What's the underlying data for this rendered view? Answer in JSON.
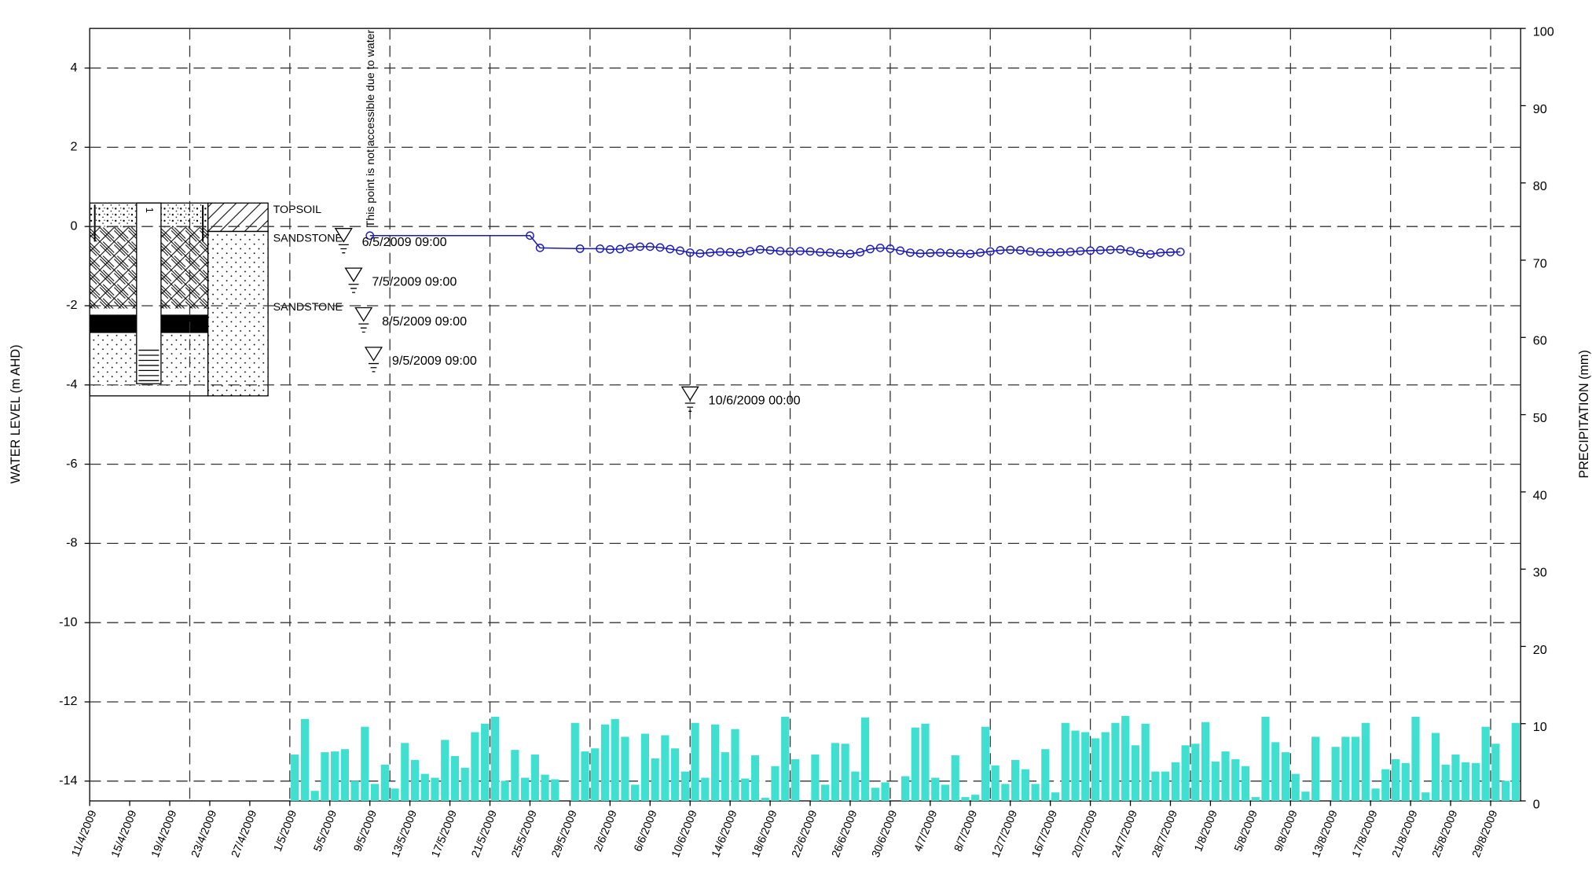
{
  "chart_data": {
    "type": "line",
    "ylabel": "WATER LEVEL (m AHD)",
    "y2label": "PRECIPITATION (mm)",
    "xlim": [
      "11/4/2009",
      "1/9/2009"
    ],
    "xticks": [
      "11/4/2009",
      "15/4/2009",
      "19/4/2009",
      "23/4/2009",
      "27/4/2009",
      "1/5/2009",
      "5/5/2009",
      "9/5/2009",
      "13/5/2009",
      "17/5/2009",
      "21/5/2009",
      "25/5/2009",
      "29/5/2009",
      "2/6/2009",
      "6/6/2009",
      "10/6/2009",
      "14/6/2009",
      "18/6/2009",
      "22/6/2009",
      "26/6/2009",
      "30/6/2009",
      "4/7/2009",
      "8/7/2009",
      "12/7/2009",
      "16/7/2009",
      "20/7/2009",
      "24/7/2009",
      "28/7/2009",
      "1/8/2009",
      "5/8/2009",
      "9/8/2009",
      "13/8/2009",
      "17/8/2009",
      "21/8/2009",
      "25/8/2009",
      "29/8/2009"
    ],
    "x_grid_step_days": 10,
    "ylim": [
      -14.5,
      5
    ],
    "yticks": [
      4,
      2,
      0,
      -2,
      -4,
      -6,
      -8,
      -10,
      -12,
      -14
    ],
    "y2lim": [
      0,
      100
    ],
    "y2ticks": [
      100,
      90,
      80,
      70,
      60,
      50,
      40,
      30,
      20,
      10,
      0
    ],
    "grid": true,
    "series": [
      {
        "type": "line",
        "color": "#1a1ab8",
        "x": [
          "9/5/2009",
          "25/5/2009",
          "26/5/2009",
          "30/5/2009",
          "1/6/2009",
          "2/6/2009",
          "3/6/2009",
          "4/6/2009",
          "5/6/2009",
          "6/6/2009",
          "7/6/2009",
          "8/6/2009",
          "9/6/2009",
          "10/6/2009",
          "11/6/2009",
          "12/6/2009",
          "13/6/2009",
          "14/6/2009",
          "15/6/2009",
          "16/6/2009",
          "17/6/2009",
          "18/6/2009",
          "19/6/2009",
          "20/6/2009",
          "21/6/2009",
          "22/6/2009",
          "23/6/2009",
          "24/6/2009",
          "25/6/2009",
          "26/6/2009",
          "27/6/2009",
          "28/6/2009",
          "29/6/2009",
          "30/6/2009",
          "1/7/2009",
          "2/7/2009",
          "3/7/2009",
          "4/7/2009",
          "5/7/2009",
          "6/7/2009",
          "7/7/2009",
          "8/7/2009",
          "9/7/2009",
          "10/7/2009",
          "11/7/2009",
          "12/7/2009",
          "13/7/2009",
          "14/7/2009",
          "15/7/2009",
          "16/7/2009",
          "17/7/2009",
          "18/7/2009",
          "19/7/2009",
          "20/7/2009",
          "21/7/2009",
          "22/7/2009",
          "23/7/2009",
          "24/7/2009",
          "25/7/2009",
          "26/7/2009",
          "27/7/2009",
          "28/7/2009",
          "29/7/2009"
        ],
        "values": [
          -0.23,
          -0.23,
          -0.54,
          -0.56,
          -0.56,
          -0.58,
          -0.57,
          -0.53,
          -0.51,
          -0.51,
          -0.53,
          -0.57,
          -0.61,
          -0.66,
          -0.68,
          -0.66,
          -0.64,
          -0.65,
          -0.67,
          -0.62,
          -0.58,
          -0.6,
          -0.62,
          -0.63,
          -0.62,
          -0.63,
          -0.65,
          -0.66,
          -0.68,
          -0.69,
          -0.65,
          -0.57,
          -0.54,
          -0.56,
          -0.61,
          -0.66,
          -0.68,
          -0.67,
          -0.66,
          -0.67,
          -0.68,
          -0.69,
          -0.66,
          -0.63,
          -0.6,
          -0.59,
          -0.6,
          -0.63,
          -0.65,
          -0.66,
          -0.65,
          -0.64,
          -0.62,
          -0.61,
          -0.6,
          -0.59,
          -0.58,
          -0.62,
          -0.67,
          -0.7,
          -0.66,
          -0.65,
          -0.64
        ]
      },
      {
        "type": "bar",
        "axis": "y2",
        "color": "#40e0d0",
        "x": [
          "1/5/2009",
          "2/5/2009",
          "3/5/2009",
          "4/5/2009",
          "5/5/2009",
          "6/5/2009",
          "7/5/2009",
          "8/5/2009",
          "9/5/2009",
          "10/5/2009",
          "11/5/2009",
          "12/5/2009",
          "13/5/2009",
          "14/5/2009",
          "15/5/2009",
          "16/5/2009",
          "17/5/2009",
          "18/5/2009",
          "19/5/2009",
          "20/5/2009",
          "21/5/2009",
          "22/5/2009",
          "23/5/2009",
          "24/5/2009",
          "25/5/2009",
          "26/5/2009",
          "27/5/2009",
          "28/5/2009",
          "29/5/2009",
          "30/5/2009",
          "31/5/2009",
          "1/6/2009",
          "2/6/2009",
          "3/6/2009",
          "4/6/2009",
          "5/6/2009",
          "6/6/2009",
          "7/6/2009",
          "8/6/2009",
          "9/6/2009",
          "10/6/2009",
          "11/6/2009",
          "12/6/2009",
          "13/6/2009",
          "14/6/2009",
          "15/6/2009",
          "16/6/2009",
          "17/6/2009",
          "18/6/2009",
          "19/6/2009",
          "20/6/2009",
          "21/6/2009",
          "22/6/2009",
          "23/6/2009",
          "24/6/2009",
          "25/6/2009",
          "26/6/2009",
          "27/6/2009",
          "28/6/2009",
          "29/6/2009",
          "30/6/2009",
          "1/7/2009",
          "2/7/2009",
          "3/7/2009",
          "4/7/2009",
          "5/7/2009",
          "6/7/2009",
          "7/7/2009",
          "8/7/2009",
          "9/7/2009",
          "10/7/2009",
          "11/7/2009",
          "12/7/2009",
          "13/7/2009",
          "14/7/2009",
          "15/7/2009",
          "16/7/2009",
          "17/7/2009",
          "18/7/2009",
          "19/7/2009",
          "20/7/2009",
          "21/7/2009",
          "22/7/2009",
          "23/7/2009",
          "24/7/2009",
          "25/7/2009",
          "26/7/2009",
          "27/7/2009",
          "28/7/2009",
          "29/7/2009",
          "30/7/2009",
          "31/7/2009",
          "1/8/2009",
          "2/8/2009",
          "3/8/2009",
          "4/8/2009",
          "5/8/2009",
          "6/8/2009",
          "7/8/2009",
          "8/8/2009",
          "9/8/2009",
          "10/8/2009",
          "11/8/2009",
          "12/8/2009",
          "13/8/2009",
          "14/8/2009",
          "15/8/2009",
          "16/8/2009",
          "17/8/2009",
          "18/8/2009",
          "19/8/2009",
          "20/8/2009",
          "21/8/2009",
          "22/8/2009",
          "23/8/2009",
          "24/8/2009",
          "25/8/2009",
          "26/8/2009",
          "27/8/2009",
          "28/8/2009",
          "29/8/2009",
          "30/8/2009",
          "31/8/2009"
        ],
        "values": [
          6.0,
          10.6,
          1.3,
          6.3,
          6.4,
          6.7,
          2.6,
          9.6,
          2.2,
          4.7,
          1.6,
          7.5,
          5.3,
          3.5,
          3.0,
          7.9,
          5.8,
          4.3,
          8.9,
          10.0,
          10.9,
          2.6,
          6.6,
          3.0,
          6.0,
          3.4,
          2.8,
          0,
          10.1,
          6.4,
          6.8,
          9.9,
          10.6,
          8.3,
          2.1,
          8.7,
          5.5,
          8.5,
          6.8,
          3.8,
          10.1,
          3.0,
          9.9,
          6.3,
          9.3,
          2.9,
          5.9,
          0.4,
          4.5,
          10.9,
          5.4,
          0,
          6.0,
          2.1,
          7.5,
          7.4,
          3.8,
          10.8,
          1.7,
          2.4,
          0,
          3.2,
          9.5,
          10.0,
          3.0,
          2.1,
          5.9,
          0.5,
          0.8,
          9.6,
          4.6,
          2.2,
          5.3,
          4.1,
          2.2,
          6.7,
          1.1,
          10.1,
          9.1,
          8.9,
          8.1,
          8.9,
          10.1,
          11.0,
          7.2,
          10.0,
          3.8,
          3.8,
          5.0,
          7.2,
          7.4,
          10.2,
          5.1,
          6.4,
          5.4,
          4.5,
          0.5,
          10.9,
          7.6,
          6.3,
          3.5,
          1.2,
          8.3,
          0,
          7.0,
          8.3,
          8.3,
          10.1,
          1.6,
          4.1,
          5.4,
          4.9,
          10.9,
          1.1,
          8.8,
          4.7,
          6.0,
          5.0,
          4.9,
          9.6,
          7.4,
          2.6,
          10.1
        ]
      }
    ],
    "readings": {
      "x": [
        "6/5/2009 09:00",
        "7/5/2009 09:00",
        "8/5/2009 09:00",
        "9/5/2009 09:00",
        "10/6/2009 00:00"
      ],
      "values": [
        -0.05,
        -1.05,
        -2.05,
        -3.05,
        -4.05
      ]
    },
    "annotation": "This point is not accessible due to water",
    "borehole": {
      "well_id": "1",
      "layers": [
        "TOPSOIL",
        "SANDSTONE",
        "SANDSTONE"
      ]
    }
  }
}
